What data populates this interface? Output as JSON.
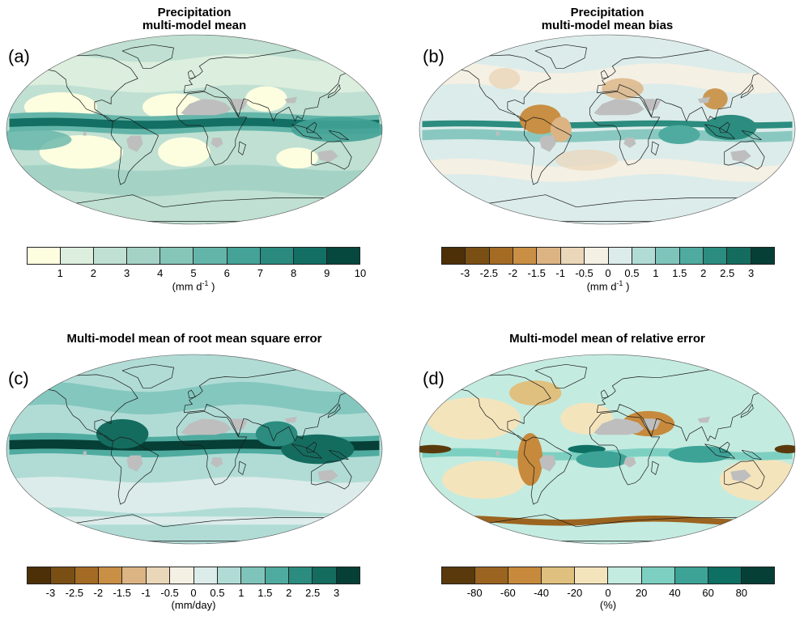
{
  "colors": {
    "green": [
      "#fdfde0",
      "#dceede",
      "#bfe0d2",
      "#a4d3c6",
      "#86c6b9",
      "#64b5a9",
      "#44a296",
      "#2a8a7e",
      "#136f63",
      "#06473e"
    ],
    "div": [
      "#4d3008",
      "#7a4f14",
      "#a46b25",
      "#c98f44",
      "#dcb483",
      "#ead6b8",
      "#f5f0e4",
      "#dcecea",
      "#b1dcd6",
      "#7fc4bb",
      "#4fab9f",
      "#2b8c7f",
      "#146c5f",
      "#063f36"
    ],
    "div10": [
      "#5a3a0c",
      "#9b6420",
      "#c78a3c",
      "#e0c07e",
      "#f4e4bc",
      "#c4ebe0",
      "#7dd0c1",
      "#3da397",
      "#0e6f63",
      "#063f36"
    ],
    "land": "#bdbdbd",
    "grey": "#bebebe"
  },
  "panels": [
    {
      "id": "a",
      "label": "(a)",
      "title": [
        "Precipitation",
        "multi-model mean"
      ],
      "palette": "green",
      "colorbar": {
        "ticks": [
          "1",
          "2",
          "3",
          "4",
          "5",
          "6",
          "7",
          "8",
          "9",
          "10"
        ],
        "unit": "mm d",
        "unit_sup": "-1",
        "unit_open": "(",
        "unit_close": " )"
      }
    },
    {
      "id": "b",
      "label": "(b)",
      "title": [
        "Precipitation",
        "multi-model mean bias"
      ],
      "palette": "div",
      "colorbar": {
        "ticks": [
          "-3",
          "-2.5",
          "-2",
          "-1.5",
          "-1",
          "-0.5",
          "0",
          "0.5",
          "1",
          "1.5",
          "2",
          "2.5",
          "3"
        ],
        "unit": "mm d",
        "unit_sup": "-1",
        "unit_open": "(",
        "unit_close": " )"
      }
    },
    {
      "id": "c",
      "label": "(c)",
      "title": [
        "Multi-model mean of root mean square error"
      ],
      "palette": "div",
      "colorbar": {
        "ticks": [
          "-3",
          "-2.5",
          "-2",
          "-1.5",
          "-1",
          "-0.5",
          "0",
          "0.5",
          "1",
          "1.5",
          "2",
          "2.5",
          "3"
        ],
        "unit": "(mm/day)"
      }
    },
    {
      "id": "d",
      "label": "(d)",
      "title": [
        "Multi-model mean of relative error"
      ],
      "palette": "div10",
      "colorbar": {
        "ticks": [
          "-80",
          "-60",
          "-40",
          "-20",
          "0",
          "20",
          "40",
          "60",
          "80"
        ],
        "unit": "(%)"
      }
    }
  ]
}
